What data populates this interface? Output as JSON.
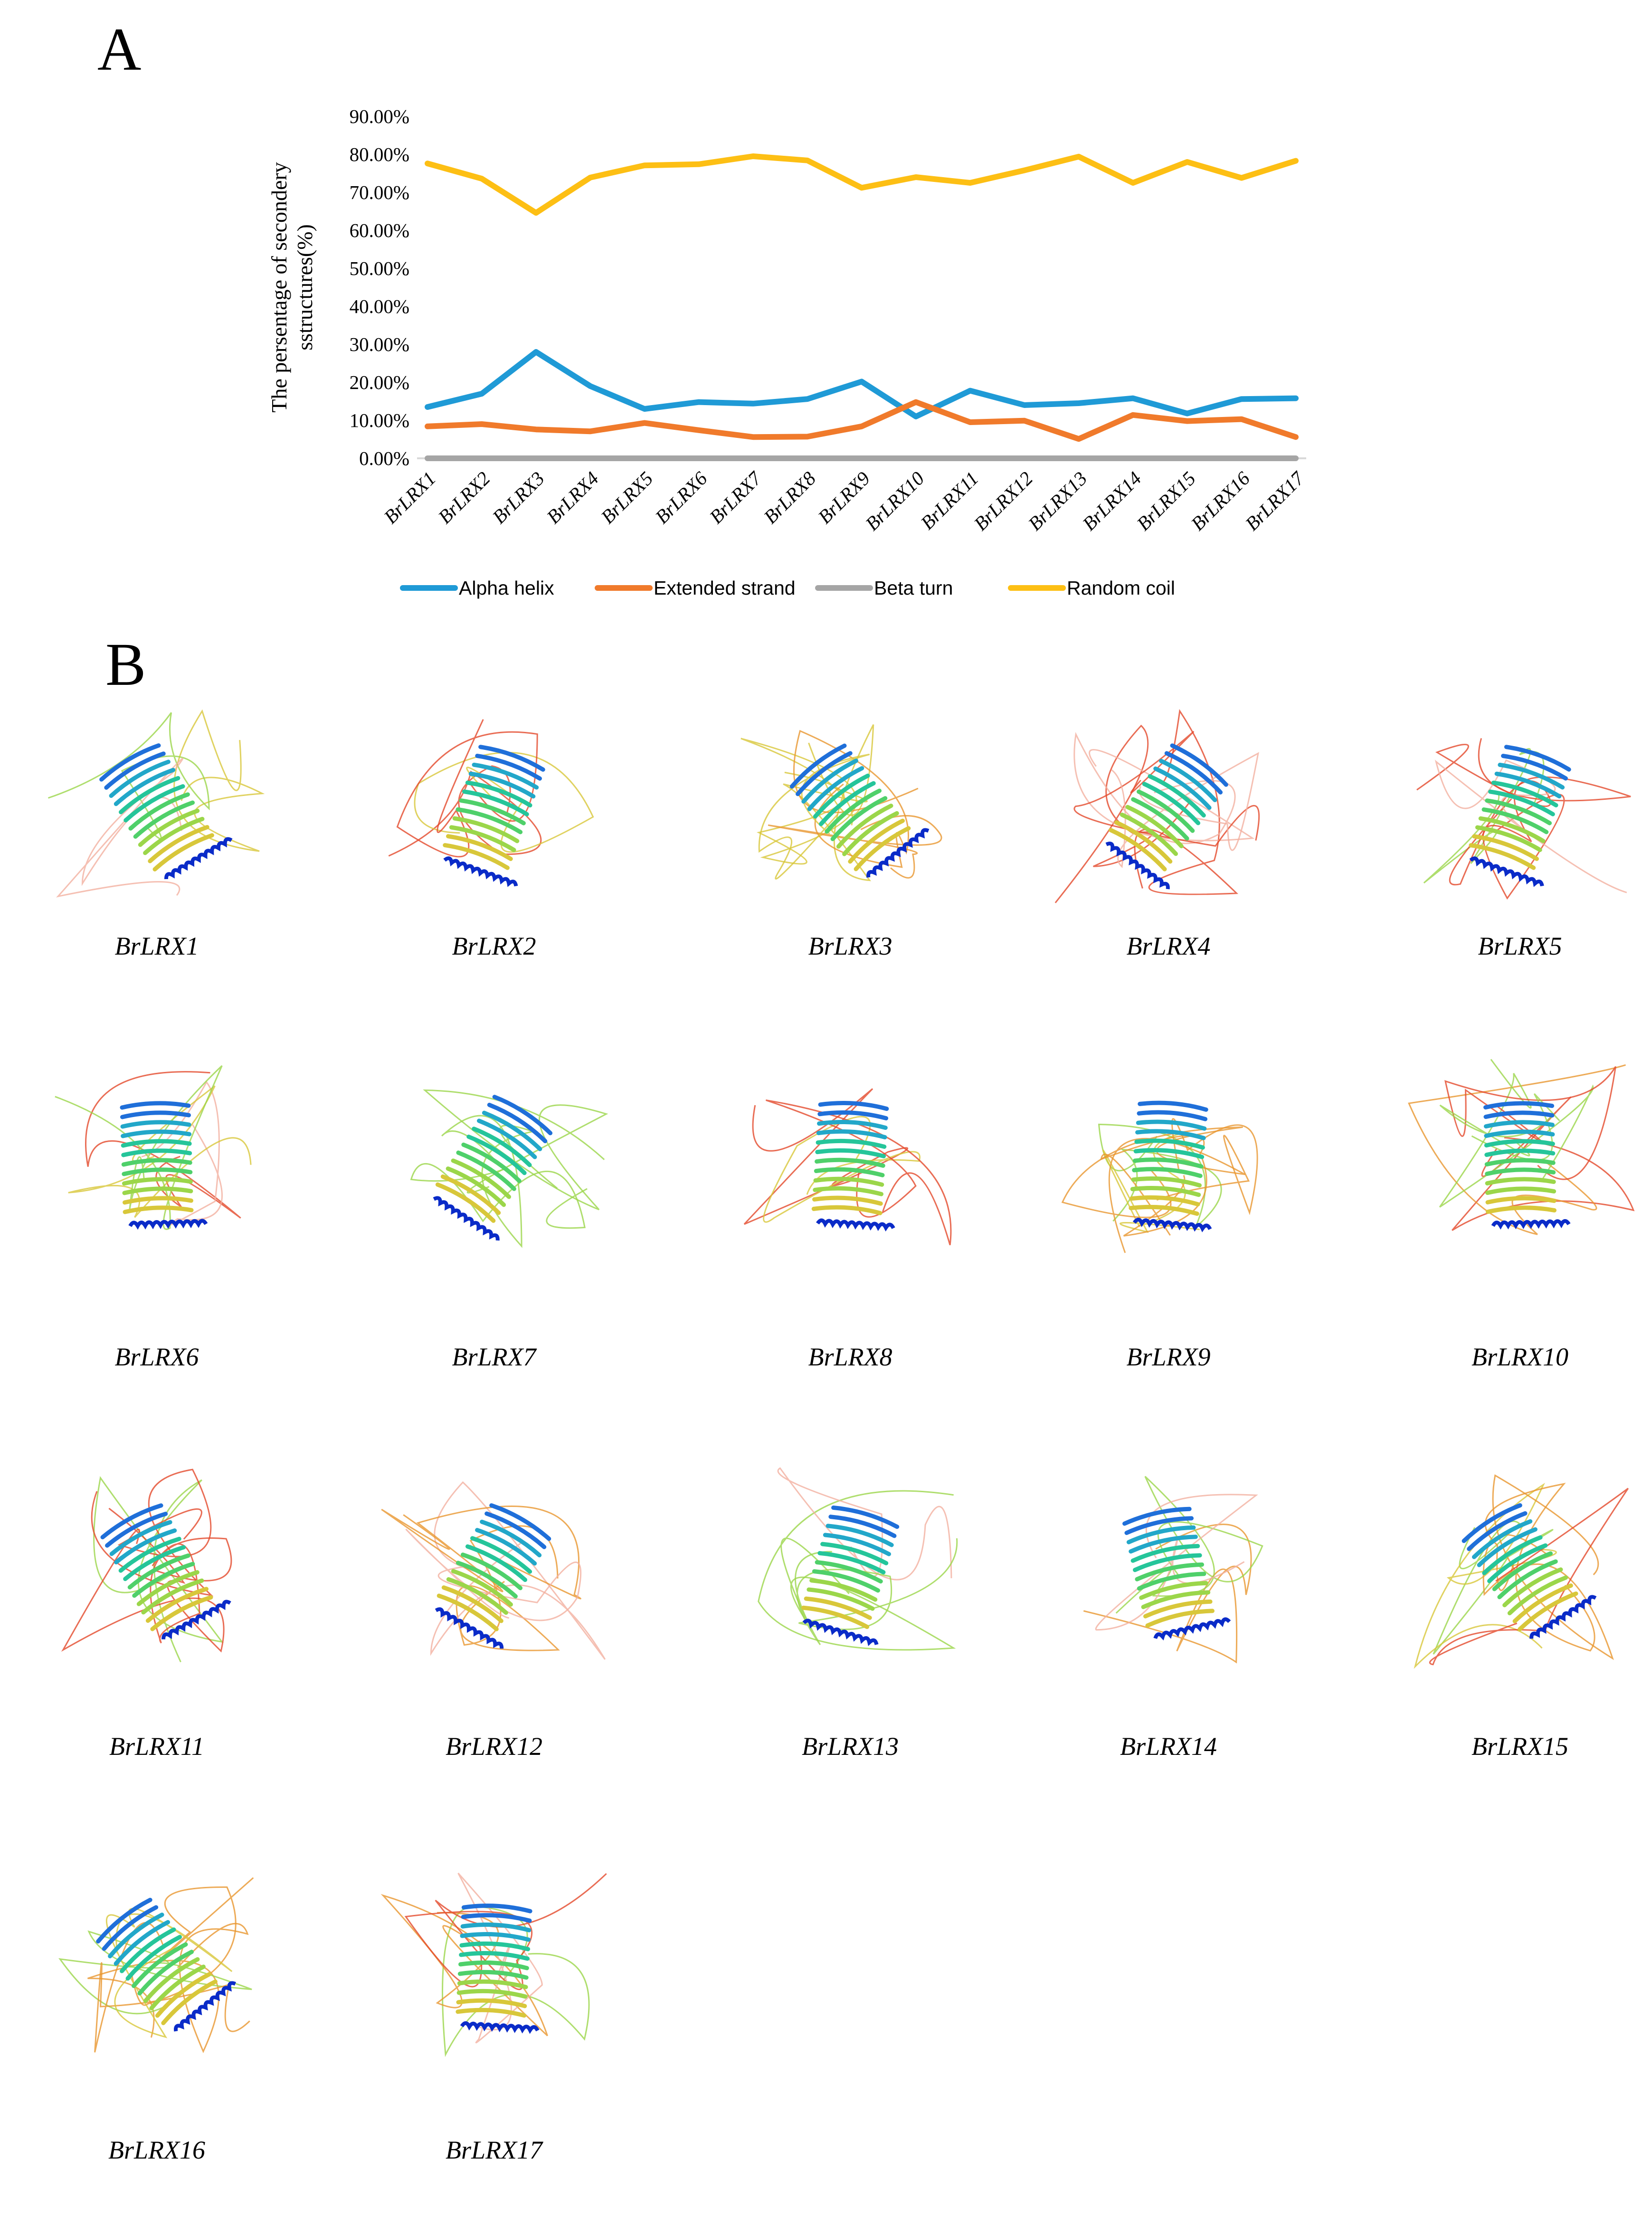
{
  "panels": {
    "a": "A",
    "b": "B"
  },
  "colors": {
    "alpha": "#1f9ad6",
    "extended": "#f07a2b",
    "beta": "#a5a5a5",
    "coil": "#fdbf14",
    "axis": "#d9d9d9"
  },
  "chart_data": {
    "type": "line",
    "title": "",
    "xlabel": "",
    "ylabel_lines": [
      "The persentage of secondery",
      "sstructures(%)"
    ],
    "categories": [
      "BrLRX1",
      "BrLRX2",
      "BrLRX3",
      "BrLRX4",
      "BrLRX5",
      "BrLRX6",
      "BrLRX7",
      "BrLRX8",
      "BrLRX9",
      "BrLRX10",
      "BrLRX11",
      "BrLRX12",
      "BrLRX13",
      "BrLRX14",
      "BrLRX15",
      "BrLRX16",
      "BrLRX17"
    ],
    "ylim": [
      0,
      90
    ],
    "yticks": [
      0,
      10,
      20,
      30,
      40,
      50,
      60,
      70,
      80,
      90
    ],
    "ytick_labels": [
      "0.00%",
      "10.00%",
      "20.00%",
      "30.00%",
      "40.00%",
      "50.00%",
      "60.00%",
      "70.00%",
      "80.00%",
      "90.00%"
    ],
    "grid": false,
    "legend_position": "bottom",
    "series": [
      {
        "name": "Alpha helix",
        "color_key": "alpha",
        "values": [
          13.5,
          17,
          28,
          19,
          13,
          14.8,
          14.4,
          15.6,
          20.2,
          11,
          17.8,
          14,
          14.5,
          15.8,
          11.8,
          15.6,
          15.8
        ]
      },
      {
        "name": "Extended strand",
        "color_key": "extended",
        "values": [
          8.4,
          9,
          7.6,
          7.1,
          9.3,
          7.4,
          5.6,
          5.7,
          8.4,
          14.8,
          9.5,
          9.9,
          5.1,
          11.4,
          9.8,
          10.3,
          5.6
        ]
      },
      {
        "name": "Beta turn",
        "color_key": "beta",
        "values": [
          0,
          0,
          0,
          0,
          0,
          0,
          0,
          0,
          0,
          0,
          0,
          0,
          0,
          0,
          0,
          0,
          0
        ]
      },
      {
        "name": "Random coil",
        "color_key": "coil",
        "values": [
          77.6,
          73.6,
          64.6,
          73.9,
          77.1,
          77.4,
          79.5,
          78.4,
          71.2,
          74,
          72.5,
          75.8,
          79.4,
          72.5,
          78,
          73.8,
          78.3
        ]
      }
    ]
  },
  "structures": [
    {
      "label": "BrLRX1"
    },
    {
      "label": "BrLRX2"
    },
    {
      "label": "BrLRX3"
    },
    {
      "label": "BrLRX4"
    },
    {
      "label": "BrLRX5"
    },
    {
      "label": "BrLRX6"
    },
    {
      "label": "BrLRX7"
    },
    {
      "label": "BrLRX8"
    },
    {
      "label": "BrLRX9"
    },
    {
      "label": "BrLRX10"
    },
    {
      "label": "BrLRX11"
    },
    {
      "label": "BrLRX12"
    },
    {
      "label": "BrLRX13"
    },
    {
      "label": "BrLRX14"
    },
    {
      "label": "BrLRX15"
    },
    {
      "label": "BrLRX16"
    },
    {
      "label": "BrLRX17"
    }
  ]
}
